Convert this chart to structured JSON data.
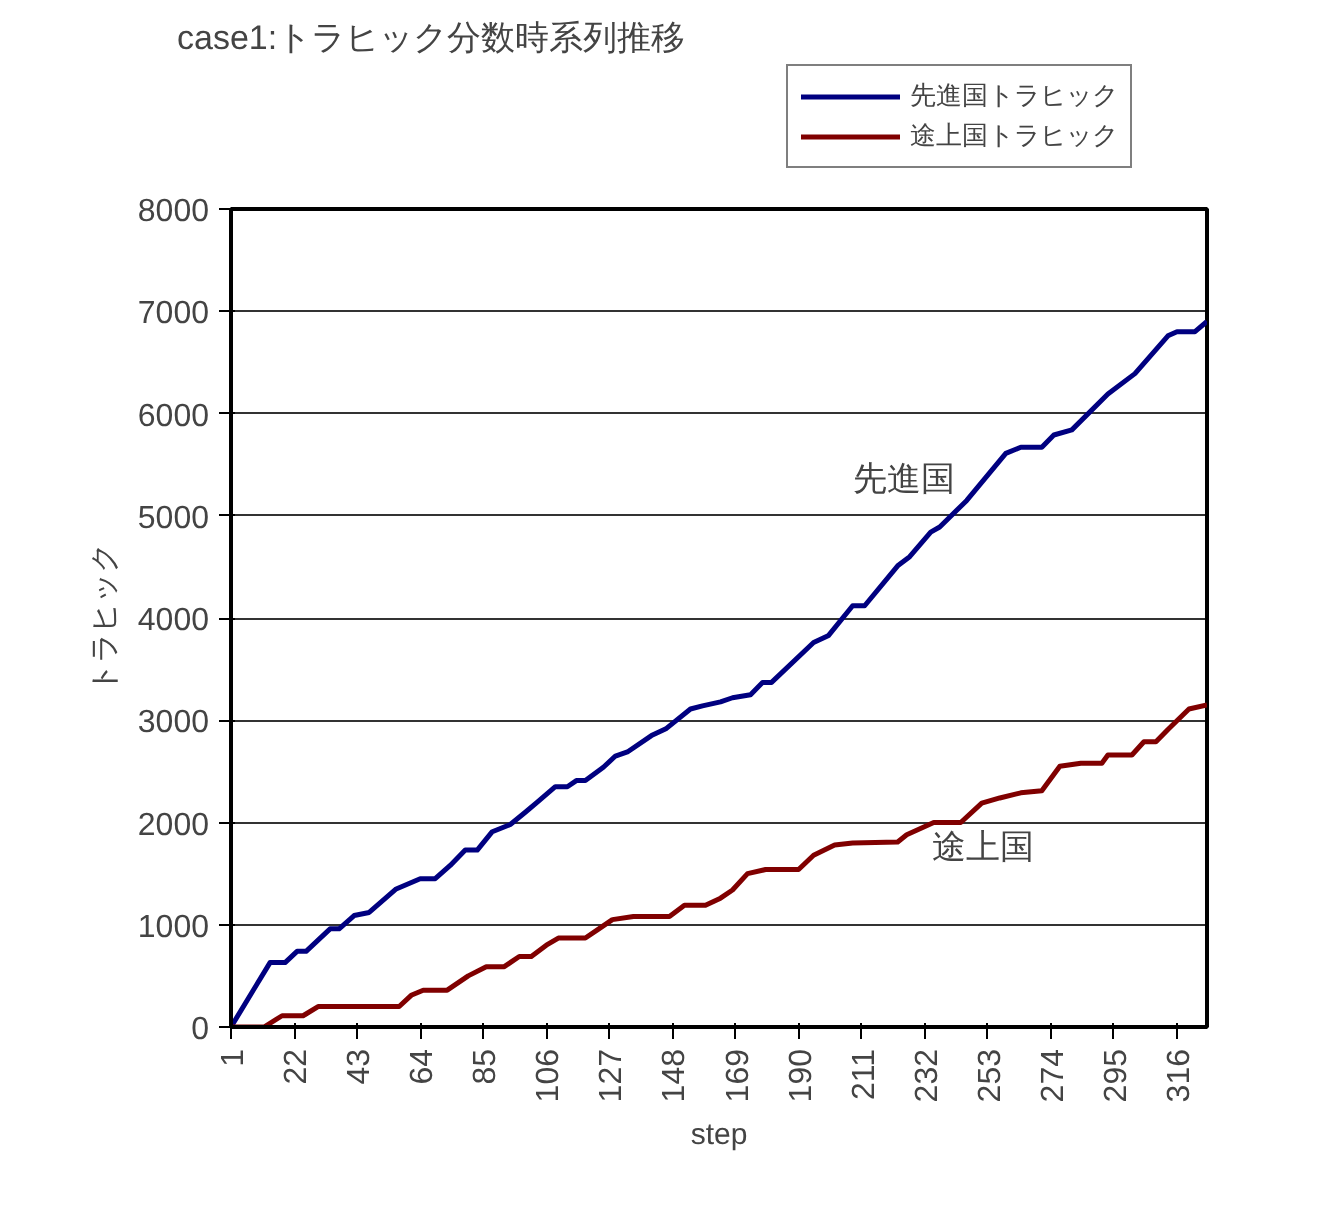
{
  "chart_data": {
    "type": "line",
    "title": "case1:トラヒック分数時系列推移",
    "xlabel": "step",
    "ylabel": "トラヒック",
    "xlim": [
      1,
      326
    ],
    "xticks": [
      1,
      22,
      43,
      64,
      85,
      106,
      127,
      148,
      169,
      190,
      211,
      232,
      253,
      274,
      295,
      316
    ],
    "ylim": [
      0,
      8000
    ],
    "yticks": [
      0,
      1000,
      2000,
      3000,
      4000,
      5000,
      6000,
      7000,
      8000
    ],
    "grid": "y",
    "legend": "top right",
    "marker": "none",
    "line_style": "solid",
    "series": [
      {
        "name": "先進国トラヒック",
        "color": "#000080",
        "x": [
          1,
          14,
          19,
          23,
          26,
          34,
          37,
          42,
          47,
          56,
          64,
          69,
          74,
          79,
          83,
          88,
          94,
          99,
          103,
          109,
          113,
          116,
          119,
          125,
          129,
          133,
          141,
          146,
          154,
          158,
          164,
          168,
          174,
          178,
          181,
          195,
          200,
          208,
          212,
          223,
          227,
          234,
          237,
          246,
          259,
          264,
          271,
          275,
          281,
          293,
          302,
          313,
          316,
          322,
          326
        ],
        "values": [
          0,
          630,
          630,
          740,
          740,
          960,
          960,
          1090,
          1120,
          1350,
          1450,
          1450,
          1580,
          1730,
          1730,
          1910,
          1980,
          2100,
          2200,
          2350,
          2350,
          2410,
          2410,
          2540,
          2650,
          2690,
          2850,
          2920,
          3110,
          3140,
          3180,
          3220,
          3250,
          3370,
          3370,
          3760,
          3830,
          4120,
          4120,
          4510,
          4600,
          4840,
          4890,
          5150,
          5610,
          5670,
          5670,
          5790,
          5840,
          6190,
          6390,
          6760,
          6800,
          6800,
          6900
        ]
      },
      {
        "name": "途上国トラヒック",
        "color": "#800000",
        "x": [
          1,
          12,
          18,
          25,
          30,
          57,
          61,
          65,
          73,
          80,
          86,
          92,
          97,
          101,
          106,
          110,
          119,
          123,
          128,
          135,
          147,
          152,
          159,
          164,
          168,
          173,
          179,
          190,
          195,
          202,
          208,
          223,
          226,
          235,
          244,
          251,
          257,
          264,
          271,
          277,
          284,
          291,
          293,
          301,
          305,
          309,
          313,
          320,
          326
        ],
        "values": [
          0,
          0,
          110,
          110,
          200,
          200,
          310,
          360,
          360,
          500,
          590,
          590,
          690,
          690,
          800,
          870,
          870,
          950,
          1050,
          1080,
          1080,
          1190,
          1190,
          1260,
          1340,
          1500,
          1540,
          1540,
          1680,
          1780,
          1800,
          1810,
          1880,
          2000,
          2000,
          2190,
          2240,
          2290,
          2310,
          2550,
          2580,
          2580,
          2660,
          2660,
          2790,
          2790,
          2910,
          3110,
          3150
        ]
      }
    ],
    "annotations": [
      "先進国",
      "途上国"
    ]
  }
}
